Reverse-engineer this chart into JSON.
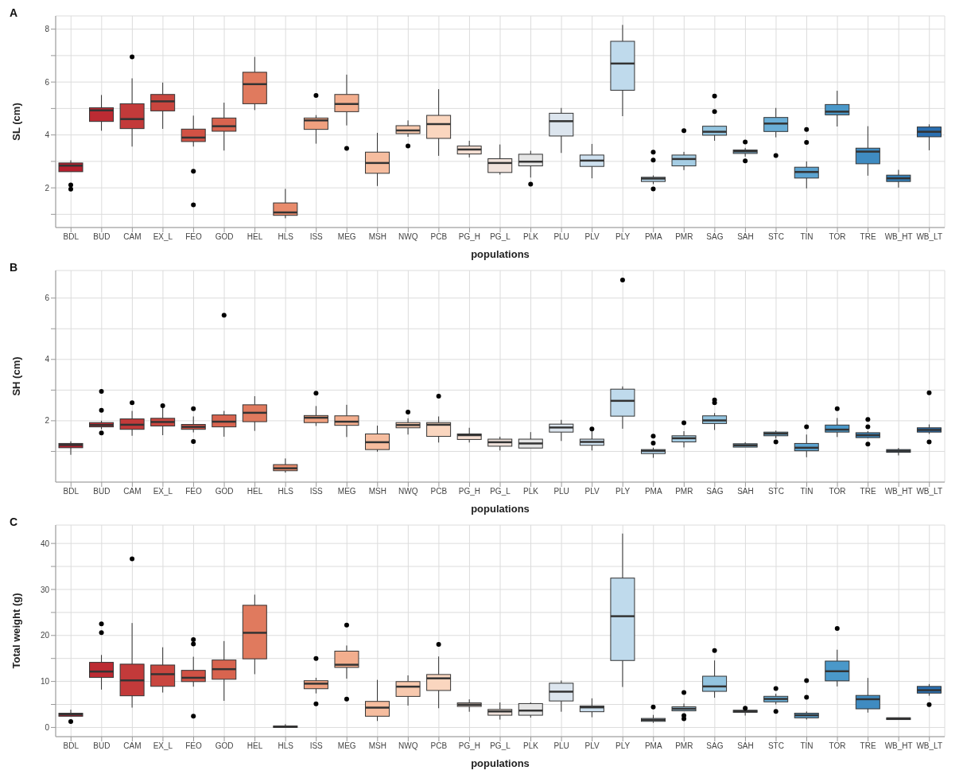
{
  "chart_data": [
    {
      "type": "box",
      "title": "A",
      "xlabel": "populations",
      "ylabel": "SL (cm)",
      "grid": true,
      "categories": [
        "BDL",
        "BUD",
        "CAM",
        "EX_L",
        "FEO",
        "GOD",
        "HEL",
        "HLS",
        "ISS",
        "MEG",
        "MSH",
        "NWQ",
        "PCB",
        "PG_H",
        "PG_L",
        "PLK",
        "PLU",
        "PLV",
        "PLY",
        "PMA",
        "PMR",
        "SAG",
        "SAH",
        "STC",
        "TIN",
        "TOR",
        "TRE",
        "WB_HT",
        "WB_LT"
      ],
      "colors": [
        "#b51f2e",
        "#bc2b33",
        "#c33a3a",
        "#c9463f",
        "#d15245",
        "#d8644f",
        "#e07a5e",
        "#e88b6c",
        "#efa07f",
        "#f3ae8e",
        "#f6bd9f",
        "#f8c9ae",
        "#fad6bf",
        "#f7e0d4",
        "#f0e2db",
        "#e5e5e5",
        "#dce5ee",
        "#cde0ef",
        "#bfdaec",
        "#b3d3e8",
        "#a5cde4",
        "#93c4df",
        "#82bbdb",
        "#6aaed6",
        "#5ca3d0",
        "#4a98c9",
        "#3f8bc1",
        "#3480b9",
        "#2a6fb0"
      ],
      "ylim": [
        0.5,
        8.5
      ],
      "yticks": [
        {
          "value": 1,
          "label": null
        },
        2,
        {
          "value": 3,
          "label": null
        },
        4,
        {
          "value": 5,
          "label": null
        },
        6,
        {
          "value": 7,
          "label": null
        },
        8
      ],
      "boxes": [
        {
          "low": 2.61,
          "q1": 2.61,
          "median": 2.84,
          "q3": 2.94,
          "high": 3.04,
          "outliers": [
            2.11,
            1.95
          ]
        },
        {
          "low": 4.16,
          "q1": 4.51,
          "median": 4.93,
          "q3": 5.03,
          "high": 5.51
        },
        {
          "low": 3.56,
          "q1": 4.24,
          "median": 4.6,
          "q3": 5.18,
          "high": 6.14,
          "outliers": [
            6.95
          ]
        },
        {
          "low": 4.23,
          "q1": 4.91,
          "median": 5.27,
          "q3": 5.53,
          "high": 5.98
        },
        {
          "low": 3.56,
          "q1": 3.75,
          "median": 3.9,
          "q3": 4.22,
          "high": 4.73,
          "outliers": [
            2.63,
            1.36
          ]
        },
        {
          "low": 3.41,
          "q1": 4.14,
          "median": 4.33,
          "q3": 4.64,
          "high": 5.22
        },
        {
          "low": 4.94,
          "q1": 5.18,
          "median": 5.92,
          "q3": 6.37,
          "high": 6.95
        },
        {
          "low": 0.85,
          "q1": 0.96,
          "median": 1.07,
          "q3": 1.43,
          "high": 1.96
        },
        {
          "low": 3.67,
          "q1": 4.21,
          "median": 4.55,
          "q3": 4.64,
          "high": 4.75,
          "outliers": [
            5.49
          ]
        },
        {
          "low": 4.36,
          "q1": 4.88,
          "median": 5.17,
          "q3": 5.53,
          "high": 6.28,
          "outliers": [
            3.49
          ]
        },
        {
          "low": 2.07,
          "q1": 2.55,
          "median": 2.94,
          "q3": 3.35,
          "high": 4.08
        },
        {
          "low": 3.93,
          "q1": 4.05,
          "median": 4.17,
          "q3": 4.35,
          "high": 4.55,
          "outliers": [
            3.58
          ]
        },
        {
          "low": 3.21,
          "q1": 3.87,
          "median": 4.41,
          "q3": 4.74,
          "high": 5.73
        },
        {
          "low": 3.15,
          "q1": 3.28,
          "median": 3.45,
          "q3": 3.58,
          "high": 3.78
        },
        {
          "low": 2.5,
          "q1": 2.58,
          "median": 2.94,
          "q3": 3.1,
          "high": 3.64
        },
        {
          "low": 2.39,
          "q1": 2.83,
          "median": 2.99,
          "q3": 3.27,
          "high": 3.4,
          "outliers": [
            2.14
          ]
        },
        {
          "low": 3.32,
          "q1": 3.96,
          "median": 4.52,
          "q3": 4.82,
          "high": 5.02
        },
        {
          "low": 2.36,
          "q1": 2.81,
          "median": 3.03,
          "q3": 3.24,
          "high": 3.66
        },
        {
          "low": 4.71,
          "q1": 5.69,
          "median": 6.7,
          "q3": 7.54,
          "high": 8.16
        },
        {
          "low": 2.14,
          "q1": 2.24,
          "median": 2.35,
          "q3": 2.4,
          "high": 2.47,
          "outliers": [
            3.35,
            3.05,
            1.96
          ]
        },
        {
          "low": 2.67,
          "q1": 2.83,
          "median": 3.09,
          "q3": 3.24,
          "high": 3.36,
          "outliers": [
            4.16
          ]
        },
        {
          "low": 3.78,
          "q1": 3.99,
          "median": 4.12,
          "q3": 4.33,
          "high": 4.33,
          "outliers": [
            5.47,
            4.88
          ]
        },
        {
          "low": 3.18,
          "q1": 3.3,
          "median": 3.38,
          "q3": 3.43,
          "high": 3.51,
          "outliers": [
            3.73,
            3.02
          ]
        },
        {
          "low": 3.91,
          "q1": 4.13,
          "median": 4.43,
          "q3": 4.66,
          "high": 5.02,
          "outliers": [
            3.22
          ]
        },
        {
          "low": 1.98,
          "q1": 2.37,
          "median": 2.6,
          "q3": 2.78,
          "high": 3.0,
          "outliers": [
            4.21,
            3.72
          ]
        },
        {
          "low": 4.32,
          "q1": 4.76,
          "median": 4.88,
          "q3": 5.15,
          "high": 5.67
        },
        {
          "low": 2.46,
          "q1": 2.91,
          "median": 3.37,
          "q3": 3.5,
          "high": 4.33
        },
        {
          "low": 2.01,
          "q1": 2.24,
          "median": 2.36,
          "q3": 2.48,
          "high": 2.68
        },
        {
          "low": 3.42,
          "q1": 3.93,
          "median": 4.12,
          "q3": 4.3,
          "high": 4.4
        }
      ]
    },
    {
      "type": "box",
      "title": "B",
      "xlabel": "populations",
      "ylabel": "SH (cm)",
      "grid": true,
      "categories": [
        "BDL",
        "BUD",
        "CAM",
        "EX_L",
        "FEO",
        "GOD",
        "HEL",
        "HLS",
        "ISS",
        "MEG",
        "MSH",
        "NWQ",
        "PCB",
        "PG_H",
        "PG_L",
        "PLK",
        "PLU",
        "PLV",
        "PLY",
        "PMA",
        "PMR",
        "SAG",
        "SAH",
        "STC",
        "TIN",
        "TOR",
        "TRE",
        "WB_HT",
        "WB_LT"
      ],
      "colors": [
        "#b51f2e",
        "#bc2b33",
        "#c33a3a",
        "#c9463f",
        "#d15245",
        "#d8644f",
        "#e07a5e",
        "#e88b6c",
        "#efa07f",
        "#f3ae8e",
        "#f6bd9f",
        "#f8c9ae",
        "#fad6bf",
        "#f7e0d4",
        "#f0e2db",
        "#e5e5e5",
        "#dce5ee",
        "#cde0ef",
        "#bfdaec",
        "#b3d3e8",
        "#a5cde4",
        "#93c4df",
        "#82bbdb",
        "#6aaed6",
        "#5ca3d0",
        "#4a98c9",
        "#3f8bc1",
        "#3480b9",
        "#2a6fb0"
      ],
      "ylim": [
        0,
        6.9
      ],
      "yticks": [
        {
          "value": 1,
          "label": null
        },
        2,
        {
          "value": 3,
          "label": null
        },
        4,
        {
          "value": 5,
          "label": null
        },
        6
      ],
      "boxes": [
        {
          "low": 0.89,
          "q1": 1.12,
          "median": 1.21,
          "q3": 1.26,
          "high": 1.33
        },
        {
          "low": 1.72,
          "q1": 1.8,
          "median": 1.86,
          "q3": 1.94,
          "high": 2.0,
          "outliers": [
            2.96,
            2.34,
            1.6
          ]
        },
        {
          "low": 1.51,
          "q1": 1.72,
          "median": 1.87,
          "q3": 2.06,
          "high": 2.32,
          "outliers": [
            2.59
          ]
        },
        {
          "low": 1.53,
          "q1": 1.83,
          "median": 1.96,
          "q3": 2.08,
          "high": 2.42,
          "outliers": [
            2.49
          ]
        },
        {
          "low": 1.62,
          "q1": 1.72,
          "median": 1.8,
          "q3": 1.88,
          "high": 2.14,
          "outliers": [
            2.39,
            1.32
          ]
        },
        {
          "low": 1.48,
          "q1": 1.8,
          "median": 1.97,
          "q3": 2.19,
          "high": 2.32,
          "outliers": [
            5.44
          ]
        },
        {
          "low": 1.67,
          "q1": 1.97,
          "median": 2.26,
          "q3": 2.52,
          "high": 2.8
        },
        {
          "low": 0.31,
          "q1": 0.37,
          "median": 0.45,
          "q3": 0.57,
          "high": 0.77
        },
        {
          "low": 1.83,
          "q1": 1.94,
          "median": 2.1,
          "q3": 2.17,
          "high": 2.48,
          "outliers": [
            2.9
          ]
        },
        {
          "low": 1.47,
          "q1": 1.85,
          "median": 1.97,
          "q3": 2.16,
          "high": 2.52
        },
        {
          "low": 0.99,
          "q1": 1.06,
          "median": 1.3,
          "q3": 1.57,
          "high": 1.84
        },
        {
          "low": 1.55,
          "q1": 1.77,
          "median": 1.86,
          "q3": 1.94,
          "high": 2.08,
          "outliers": [
            2.28
          ]
        },
        {
          "low": 1.29,
          "q1": 1.49,
          "median": 1.87,
          "q3": 1.94,
          "high": 2.14,
          "outliers": [
            2.8
          ]
        },
        {
          "low": 1.29,
          "q1": 1.39,
          "median": 1.53,
          "q3": 1.57,
          "high": 1.77
        },
        {
          "low": 1.03,
          "q1": 1.17,
          "median": 1.3,
          "q3": 1.4,
          "high": 1.48
        },
        {
          "low": 1.11,
          "q1": 1.11,
          "median": 1.26,
          "q3": 1.4,
          "high": 1.63
        },
        {
          "low": 1.34,
          "q1": 1.63,
          "median": 1.78,
          "q3": 1.89,
          "high": 2.03
        },
        {
          "low": 1.03,
          "q1": 1.2,
          "median": 1.31,
          "q3": 1.4,
          "high": 1.68,
          "outliers": [
            1.73
          ]
        },
        {
          "low": 1.74,
          "q1": 2.15,
          "median": 2.65,
          "q3": 3.03,
          "high": 3.12,
          "outliers": [
            6.59
          ]
        },
        {
          "low": 0.79,
          "q1": 0.93,
          "median": 1.02,
          "q3": 1.06,
          "high": 1.12,
          "outliers": [
            1.5,
            1.27
          ]
        },
        {
          "low": 1.13,
          "q1": 1.31,
          "median": 1.43,
          "q3": 1.51,
          "high": 1.66,
          "outliers": [
            1.93
          ]
        },
        {
          "low": 1.7,
          "q1": 1.91,
          "median": 2.01,
          "q3": 2.16,
          "high": 2.25,
          "outliers": [
            2.68,
            2.59
          ]
        },
        {
          "low": 1.14,
          "q1": 1.14,
          "median": 1.2,
          "q3": 1.25,
          "high": 1.3
        },
        {
          "low": 1.42,
          "q1": 1.51,
          "median": 1.58,
          "q3": 1.63,
          "high": 1.68,
          "outliers": [
            1.31
          ]
        },
        {
          "low": 0.81,
          "q1": 1.02,
          "median": 1.12,
          "q3": 1.26,
          "high": 1.55,
          "outliers": [
            1.8
          ]
        },
        {
          "low": 1.47,
          "q1": 1.63,
          "median": 1.71,
          "q3": 1.86,
          "high": 2.09,
          "outliers": [
            2.39
          ]
        },
        {
          "low": 1.43,
          "q1": 1.45,
          "median": 1.53,
          "q3": 1.61,
          "high": 1.66,
          "outliers": [
            2.04,
            1.8,
            1.24
          ]
        },
        {
          "low": 0.87,
          "q1": 0.97,
          "median": 1.02,
          "q3": 1.06,
          "high": 1.11
        },
        {
          "low": 1.57,
          "q1": 1.63,
          "median": 1.7,
          "q3": 1.77,
          "high": 1.88,
          "outliers": [
            2.91,
            1.31
          ]
        }
      ]
    },
    {
      "type": "box",
      "title": "C",
      "xlabel": "populations",
      "ylabel": "Total weight (g)",
      "grid": true,
      "categories": [
        "BDL",
        "BUD",
        "CAM",
        "EX_L",
        "FEO",
        "GOD",
        "HEL",
        "HLS",
        "ISS",
        "MEG",
        "MSH",
        "NWQ",
        "PCB",
        "PG_H",
        "PG_L",
        "PLK",
        "PLU",
        "PLV",
        "PLY",
        "PMA",
        "PMR",
        "SAG",
        "SAH",
        "STC",
        "TIN",
        "TOR",
        "TRE",
        "WB_HT",
        "WB_LT"
      ],
      "colors": [
        "#b51f2e",
        "#bc2b33",
        "#c33a3a",
        "#c9463f",
        "#d15245",
        "#d8644f",
        "#e07a5e",
        "#e88b6c",
        "#efa07f",
        "#f3ae8e",
        "#f6bd9f",
        "#f8c9ae",
        "#fad6bf",
        "#f7e0d4",
        "#f0e2db",
        "#e5e5e5",
        "#dce5ee",
        "#cde0ef",
        "#bfdaec",
        "#b3d3e8",
        "#a5cde4",
        "#93c4df",
        "#82bbdb",
        "#6aaed6",
        "#5ca3d0",
        "#4a98c9",
        "#3f8bc1",
        "#3480b9",
        "#2a6fb0"
      ],
      "ylim": [
        -2,
        44
      ],
      "yticks": [
        0,
        {
          "value": 5,
          "label": null
        },
        10,
        {
          "value": 15,
          "label": null
        },
        20,
        {
          "value": 25,
          "label": null
        },
        30,
        {
          "value": 35,
          "label": null
        },
        40
      ],
      "boxes": [
        {
          "low": 2.44,
          "q1": 2.44,
          "median": 2.83,
          "q3": 3.09,
          "high": 3.86,
          "outliers": [
            1.29
          ]
        },
        {
          "low": 8.23,
          "q1": 10.87,
          "median": 12.15,
          "q3": 14.15,
          "high": 15.76,
          "outliers": [
            22.5,
            20.6
          ]
        },
        {
          "low": 4.31,
          "q1": 6.88,
          "median": 10.23,
          "q3": 13.76,
          "high": 22.7,
          "outliers": [
            36.66
          ]
        },
        {
          "low": 7.59,
          "q1": 8.94,
          "median": 11.58,
          "q3": 13.57,
          "high": 17.43
        },
        {
          "low": 8.87,
          "q1": 9.97,
          "median": 10.8,
          "q3": 12.41,
          "high": 15.37,
          "outliers": [
            19.1,
            18.13,
            2.44
          ]
        },
        {
          "low": 5.79,
          "q1": 10.48,
          "median": 12.67,
          "q3": 14.66,
          "high": 18.78
        },
        {
          "low": 11.58,
          "q1": 14.92,
          "median": 20.58,
          "q3": 26.56,
          "high": 28.87
        },
        {
          "low": 0.0,
          "q1": 0.0,
          "median": 0.13,
          "q3": 0.32,
          "high": 0.71
        },
        {
          "low": 7.4,
          "q1": 8.42,
          "median": 9.52,
          "q3": 10.16,
          "high": 10.8,
          "outliers": [
            14.98,
            5.14
          ]
        },
        {
          "low": 10.61,
          "q1": 13.05,
          "median": 13.63,
          "q3": 16.59,
          "high": 17.81,
          "outliers": [
            22.25,
            6.17
          ]
        },
        {
          "low": 1.41,
          "q1": 2.44,
          "median": 4.31,
          "q3": 5.66,
          "high": 10.35
        },
        {
          "low": 4.76,
          "q1": 6.75,
          "median": 8.87,
          "q3": 9.97,
          "high": 11.32
        },
        {
          "low": 4.18,
          "q1": 8.04,
          "median": 10.68,
          "q3": 11.51,
          "high": 15.43,
          "outliers": [
            18.07
          ]
        },
        {
          "low": 3.41,
          "q1": 4.57,
          "median": 4.95,
          "q3": 5.34,
          "high": 6.11
        },
        {
          "low": 1.71,
          "q1": 2.66,
          "median": 3.48,
          "q3": 3.92,
          "high": 5.44
        },
        {
          "low": 2.15,
          "q1": 2.66,
          "median": 3.67,
          "q3": 5.19,
          "high": 5.44
        },
        {
          "low": 3.42,
          "q1": 5.76,
          "median": 7.78,
          "q3": 9.62,
          "high": 10.19
        },
        {
          "low": 2.22,
          "q1": 3.42,
          "median": 4.37,
          "q3": 4.68,
          "high": 6.33
        },
        {
          "low": 8.8,
          "q1": 14.56,
          "median": 24.18,
          "q3": 32.47,
          "high": 42.15
        },
        {
          "low": 1.01,
          "q1": 1.33,
          "median": 1.65,
          "q3": 1.96,
          "high": 2.72,
          "outliers": [
            4.43
          ]
        },
        {
          "low": 3.61,
          "q1": 3.61,
          "median": 4.05,
          "q3": 4.49,
          "high": 5.19,
          "outliers": [
            7.59,
            2.6,
            1.9
          ]
        },
        {
          "low": 6.46,
          "q1": 7.85,
          "median": 8.92,
          "q3": 11.14,
          "high": 14.56,
          "outliers": [
            16.71
          ]
        },
        {
          "low": 2.59,
          "q1": 3.29,
          "median": 3.54,
          "q3": 3.73,
          "high": 3.99,
          "outliers": [
            4.18
          ]
        },
        {
          "low": 5.0,
          "q1": 5.57,
          "median": 6.2,
          "q3": 6.77,
          "high": 7.34,
          "outliers": [
            8.48,
            3.48
          ]
        },
        {
          "low": 1.71,
          "q1": 2.09,
          "median": 2.66,
          "q3": 3.1,
          "high": 3.48,
          "outliers": [
            10.19,
            6.58
          ]
        },
        {
          "low": 8.92,
          "q1": 10.13,
          "median": 12.22,
          "q3": 14.43,
          "high": 16.9,
          "outliers": [
            21.52
          ]
        },
        {
          "low": 3.23,
          "q1": 4.05,
          "median": 6.14,
          "q3": 6.96,
          "high": 10.76
        },
        {
          "low": 1.65,
          "q1": 1.71,
          "median": 1.96,
          "q3": 2.09,
          "high": 2.15
        },
        {
          "low": 6.9,
          "q1": 7.47,
          "median": 8.1,
          "q3": 8.92,
          "high": 9.43,
          "outliers": [
            4.94
          ]
        }
      ]
    }
  ]
}
